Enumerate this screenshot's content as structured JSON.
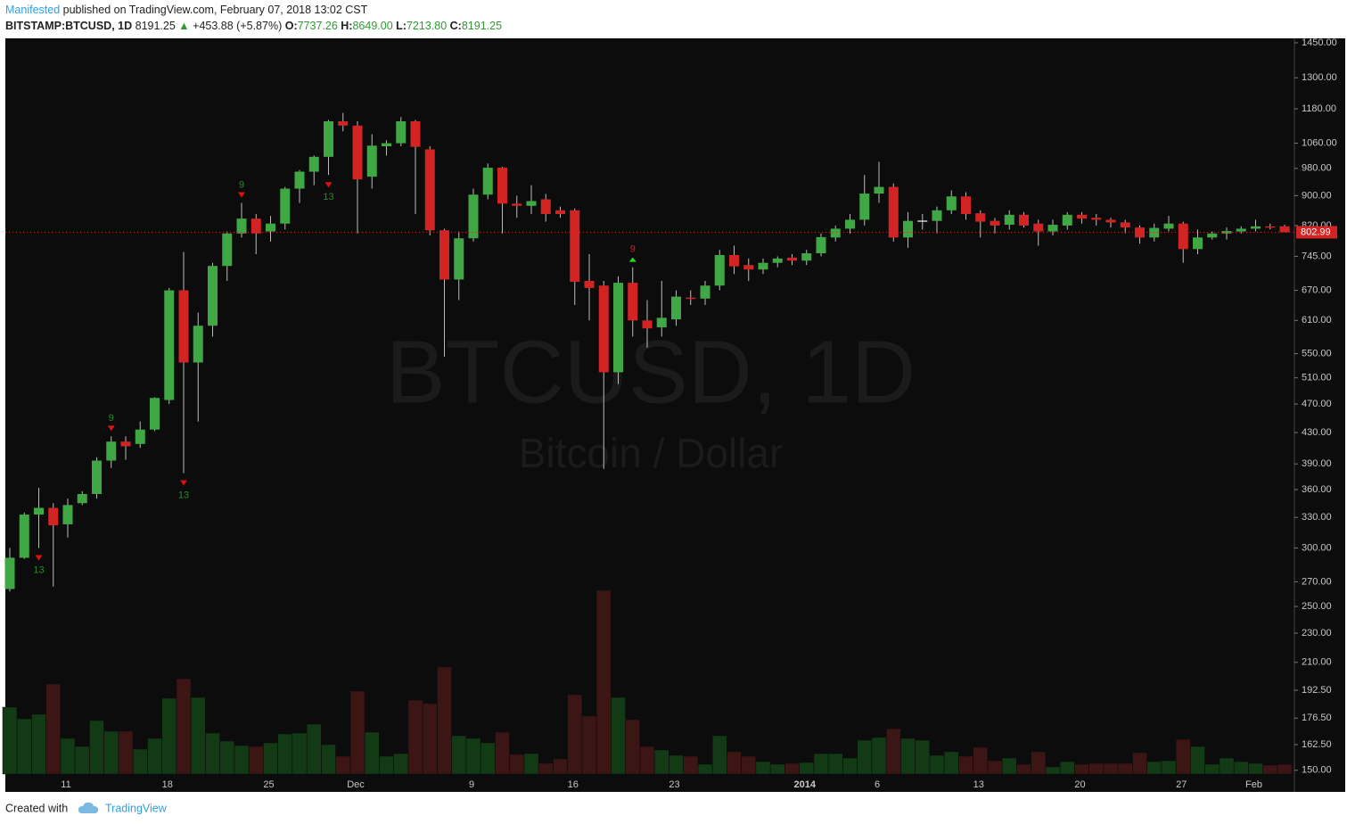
{
  "header": {
    "author": "Manifested",
    "published": "published on TradingView.com, February 07, 2018 13:02 CST",
    "symbol": "BITSTAMP:BTCUSD, 1D",
    "last": "8191.25",
    "arrow": "▲",
    "change": "+453.88 (+5.87%)",
    "o_label": "O:",
    "o": "7737.26",
    "h_label": "H:",
    "h": "8649.00",
    "l_label": "L:",
    "l": "7213.80",
    "c_label": "C:",
    "c": "8191.25"
  },
  "footer": {
    "created": "Created with",
    "brand": "TradingView"
  },
  "chart_data": {
    "type": "candlestick",
    "watermark": "BTCUSD, 1D",
    "watermark_sub": "Bitcoin / Dollar",
    "log_scale": true,
    "grid": false,
    "up_color": "#3fa844",
    "down_color": "#d32424",
    "volume_up_color": "#123b15",
    "volume_down_color": "#3c1515",
    "categories": [
      null,
      null,
      null,
      null,
      "11",
      null,
      null,
      null,
      null,
      null,
      null,
      "18",
      null,
      null,
      null,
      null,
      null,
      null,
      "25",
      null,
      null,
      null,
      null,
      null,
      "Dec",
      null,
      null,
      null,
      null,
      null,
      null,
      null,
      "9",
      null,
      null,
      null,
      null,
      null,
      null,
      "16",
      null,
      null,
      null,
      null,
      null,
      null,
      "23",
      null,
      null,
      null,
      null,
      null,
      null,
      null,
      null,
      "2014",
      null,
      null,
      null,
      null,
      "6",
      null,
      null,
      null,
      null,
      null,
      null,
      "13",
      null,
      null,
      null,
      null,
      null,
      null,
      "20",
      null,
      null,
      null,
      null,
      null,
      null,
      "27",
      null,
      null,
      null,
      null,
      "Feb",
      null,
      null
    ],
    "open": [
      264,
      291,
      333,
      340,
      323,
      345,
      355,
      394,
      418,
      415,
      434,
      476,
      670,
      535,
      600,
      723,
      800,
      838,
      805,
      825,
      920,
      970,
      1016,
      1135,
      1120,
      955,
      1050,
      1060,
      1135,
      1040,
      808,
      693,
      788,
      903,
      982,
      878,
      872,
      890,
      860,
      860,
      690,
      680,
      519,
      686,
      610,
      597,
      612,
      655,
      653,
      680,
      748,
      725,
      715,
      730,
      742,
      735,
      752,
      790,
      812,
      835,
      906,
      925,
      790,
      833,
      832,
      860,
      898,
      852,
      832,
      822,
      848,
      825,
      805,
      820,
      848,
      840,
      835,
      828,
      815,
      790,
      812,
      825,
      762,
      790,
      800,
      805,
      812,
      818,
      818
    ],
    "high": [
      300,
      335,
      362,
      345,
      350,
      358,
      398,
      425,
      425,
      445,
      480,
      675,
      755,
      625,
      730,
      805,
      880,
      850,
      845,
      925,
      975,
      1020,
      1140,
      1165,
      1135,
      1090,
      1070,
      1150,
      1140,
      1050,
      812,
      805,
      920,
      995,
      985,
      900,
      930,
      905,
      870,
      865,
      750,
      690,
      700,
      720,
      650,
      690,
      670,
      670,
      690,
      760,
      770,
      740,
      740,
      745,
      750,
      760,
      800,
      820,
      850,
      960,
      1000,
      935,
      855,
      850,
      870,
      915,
      910,
      860,
      840,
      860,
      855,
      835,
      835,
      855,
      855,
      850,
      840,
      835,
      820,
      825,
      845,
      830,
      810,
      805,
      815,
      818,
      835,
      825,
      822
    ],
    "low": [
      262,
      290,
      300,
      266,
      310,
      343,
      350,
      385,
      395,
      410,
      432,
      470,
      379,
      445,
      580,
      690,
      790,
      750,
      780,
      810,
      880,
      930,
      960,
      1100,
      800,
      920,
      1020,
      1050,
      850,
      795,
      545,
      650,
      780,
      890,
      800,
      840,
      850,
      830,
      840,
      640,
      610,
      384,
      500,
      580,
      560,
      580,
      600,
      640,
      640,
      670,
      705,
      690,
      705,
      720,
      725,
      725,
      745,
      780,
      800,
      820,
      880,
      780,
      765,
      810,
      800,
      850,
      835,
      790,
      800,
      810,
      815,
      770,
      795,
      810,
      825,
      820,
      815,
      800,
      775,
      780,
      805,
      730,
      750,
      785,
      785,
      800,
      805,
      810,
      805
    ],
    "close": [
      291,
      333,
      340,
      322,
      343,
      355,
      394,
      418,
      412,
      434,
      479,
      670,
      535,
      600,
      723,
      800,
      838,
      800,
      825,
      920,
      970,
      1016,
      1135,
      1120,
      947,
      1052,
      1060,
      1135,
      1048,
      808,
      693,
      788,
      903,
      982,
      878,
      872,
      885,
      850,
      850,
      688,
      675,
      519,
      686,
      610,
      595,
      615,
      657,
      653,
      680,
      748,
      722,
      715,
      730,
      740,
      735,
      752,
      791,
      812,
      835,
      906,
      925,
      790,
      832,
      833,
      860,
      898,
      850,
      830,
      820,
      848,
      820,
      805,
      822,
      848,
      838,
      835,
      828,
      815,
      790,
      814,
      825,
      762,
      790,
      800,
      806,
      812,
      818,
      817,
      803
    ],
    "volume": [
      75,
      62,
      67,
      101,
      40,
      31,
      60,
      48,
      48,
      28,
      40,
      85,
      107,
      86,
      46,
      37,
      32,
      31,
      35,
      45,
      46,
      56,
      33,
      20,
      93,
      47,
      20,
      23,
      83,
      79,
      120,
      43,
      40,
      35,
      47,
      22,
      23,
      12,
      17,
      89,
      65,
      206,
      86,
      61,
      31,
      27,
      21,
      20,
      11,
      43,
      25,
      20,
      14,
      11,
      12,
      13,
      23,
      23,
      18,
      38,
      41,
      51,
      40,
      38,
      21,
      25,
      20,
      30,
      15,
      18,
      11,
      25,
      8,
      14,
      11,
      12,
      12,
      12,
      24,
      14,
      15,
      39,
      31,
      11,
      18,
      14,
      12,
      10,
      11
    ],
    "td_above": [
      null,
      null,
      null,
      null,
      null,
      null,
      null,
      "9",
      null,
      null,
      null,
      null,
      null,
      null,
      null,
      null,
      "9",
      null,
      null,
      null,
      null,
      null,
      null,
      null,
      null,
      null,
      null,
      null,
      null,
      null,
      null,
      null,
      null,
      null,
      null,
      null,
      null,
      null,
      null,
      null,
      null,
      null,
      null,
      "9",
      null,
      null,
      null,
      null,
      null,
      null,
      null,
      null,
      null,
      null,
      null,
      null,
      null,
      null,
      null,
      null,
      null,
      null,
      null,
      null,
      null,
      null,
      null,
      null,
      null,
      null,
      null,
      null,
      null,
      null,
      null,
      null,
      null,
      null,
      null,
      null,
      null,
      null,
      null,
      null,
      null,
      null,
      null,
      null,
      null
    ],
    "td_below": [
      null,
      null,
      "13",
      null,
      null,
      null,
      null,
      null,
      null,
      null,
      null,
      null,
      "13",
      null,
      null,
      null,
      null,
      null,
      null,
      null,
      null,
      null,
      "13",
      null,
      null,
      null,
      null,
      null,
      null,
      null,
      null,
      null,
      null,
      null,
      null,
      null,
      null,
      null,
      null,
      null,
      null,
      null,
      null,
      null,
      null,
      null,
      null,
      null,
      null,
      null,
      null,
      null,
      null,
      null,
      null,
      null,
      null,
      null,
      null,
      null,
      null,
      null,
      null,
      null,
      null,
      null,
      null,
      null,
      null,
      null,
      null,
      null,
      null,
      null,
      null,
      null,
      null,
      null,
      null,
      null,
      null,
      null,
      null,
      null,
      null,
      null,
      null,
      null,
      null
    ],
    "ylim": [
      141,
      1466
    ],
    "yticks": [
      {
        "value": 1450,
        "label": "1450.00"
      },
      {
        "value": 1300,
        "label": "1300.00"
      },
      {
        "value": 1180,
        "label": "1180.00"
      },
      {
        "value": 1060,
        "label": "1060.00"
      },
      {
        "value": 980,
        "label": "980.00"
      },
      {
        "value": 900,
        "label": "900.00"
      },
      {
        "value": 820,
        "label": "820.00"
      },
      {
        "value": 745,
        "label": "745.00"
      },
      {
        "value": 670,
        "label": "670.00"
      },
      {
        "value": 610,
        "label": "610.00"
      },
      {
        "value": 550,
        "label": "550.00"
      },
      {
        "value": 510,
        "label": "510.00"
      },
      {
        "value": 470,
        "label": "470.00"
      },
      {
        "value": 430,
        "label": "430.00"
      },
      {
        "value": 390,
        "label": "390.00"
      },
      {
        "value": 360,
        "label": "360.00"
      },
      {
        "value": 330,
        "label": "330.00"
      },
      {
        "value": 300,
        "label": "300.00"
      },
      {
        "value": 270,
        "label": "270.00"
      },
      {
        "value": 250,
        "label": "250.00"
      },
      {
        "value": 230,
        "label": "230.00"
      },
      {
        "value": 210,
        "label": "210.00"
      },
      {
        "value": 192.5,
        "label": "192.50"
      },
      {
        "value": 176.5,
        "label": "176.50"
      },
      {
        "value": 162.5,
        "label": "162.50"
      },
      {
        "value": 150,
        "label": "150.00"
      }
    ],
    "last_price": {
      "value": 802.99,
      "label": "802.99"
    }
  }
}
